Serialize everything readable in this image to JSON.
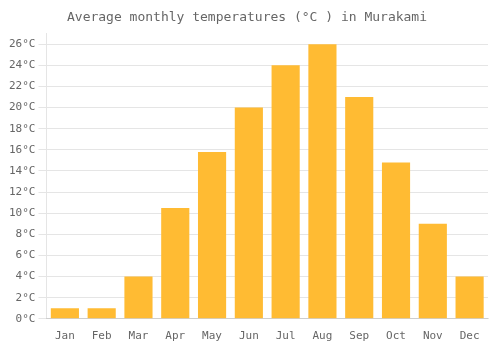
{
  "chart_data": {
    "type": "bar",
    "title": "Average monthly temperatures (°C ) in Murakami",
    "categories": [
      "Jan",
      "Feb",
      "Mar",
      "Apr",
      "May",
      "Jun",
      "Jul",
      "Aug",
      "Sep",
      "Oct",
      "Nov",
      "Dec"
    ],
    "values": [
      1,
      1,
      4,
      10.5,
      15.8,
      20,
      24,
      26,
      21,
      14.8,
      9,
      4
    ],
    "color": "#FFBB33",
    "ylim": [
      0,
      27
    ],
    "yticks": [
      {
        "value": 0,
        "label": "0°C"
      },
      {
        "value": 2,
        "label": "2°C"
      },
      {
        "value": 4,
        "label": "4°C"
      },
      {
        "value": 6,
        "label": "6°C"
      },
      {
        "value": 8,
        "label": "8°C"
      },
      {
        "value": 10,
        "label": "10°C"
      },
      {
        "value": 12,
        "label": "12°C"
      },
      {
        "value": 14,
        "label": "14°C"
      },
      {
        "value": 16,
        "label": "16°C"
      },
      {
        "value": 18,
        "label": "18°C"
      },
      {
        "value": 20,
        "label": "20°C"
      },
      {
        "value": 22,
        "label": "22°C"
      },
      {
        "value": 24,
        "label": "24°C"
      },
      {
        "value": 26,
        "label": "26°C"
      }
    ],
    "grid": true
  }
}
